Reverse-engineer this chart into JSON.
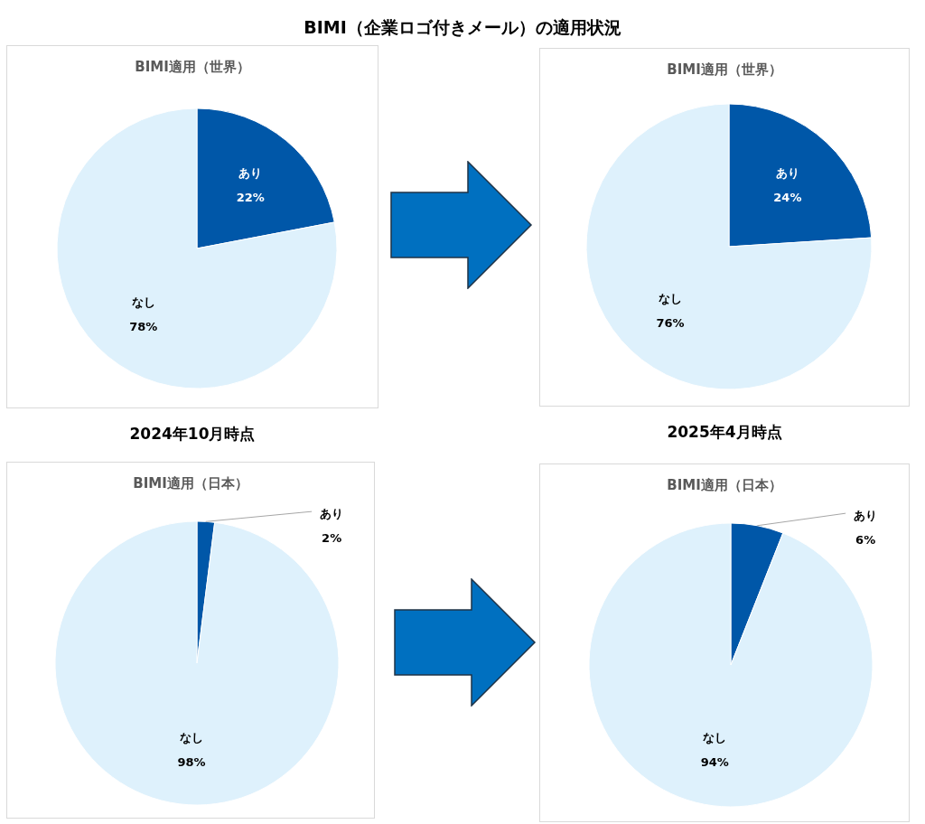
{
  "chart_data": [
    {
      "type": "other",
      "title": "BIMI（企業ロゴ付きメール）の適用状況"
    },
    {
      "type": "pie",
      "title": "BIMI適用（世界）",
      "categories": [
        "あり",
        "なし"
      ],
      "values": [
        22,
        78
      ],
      "colors": [
        "#0057a8",
        "#def1fc"
      ],
      "value_labels": [
        "22%",
        "78%"
      ],
      "annotations": [
        "2024年10月時点"
      ]
    },
    {
      "type": "pie",
      "title": "BIMI適用（世界）",
      "categories": [
        "あり",
        "なし"
      ],
      "values": [
        24,
        76
      ],
      "colors": [
        "#0057a8",
        "#def1fc"
      ],
      "value_labels": [
        "24%",
        "76%"
      ],
      "annotations": [
        "2025年4月時点"
      ]
    },
    {
      "type": "pie",
      "title": "BIMI適用（日本）",
      "categories": [
        "あり",
        "なし"
      ],
      "values": [
        2,
        98
      ],
      "colors": [
        "#0057a8",
        "#def1fc"
      ],
      "value_labels": [
        "2%",
        "98%"
      ]
    },
    {
      "type": "pie",
      "title": "BIMI適用（日本）",
      "categories": [
        "あり",
        "なし"
      ],
      "values": [
        6,
        94
      ],
      "colors": [
        "#0057a8",
        "#def1fc"
      ],
      "value_labels": [
        "6%",
        "94%"
      ]
    }
  ]
}
